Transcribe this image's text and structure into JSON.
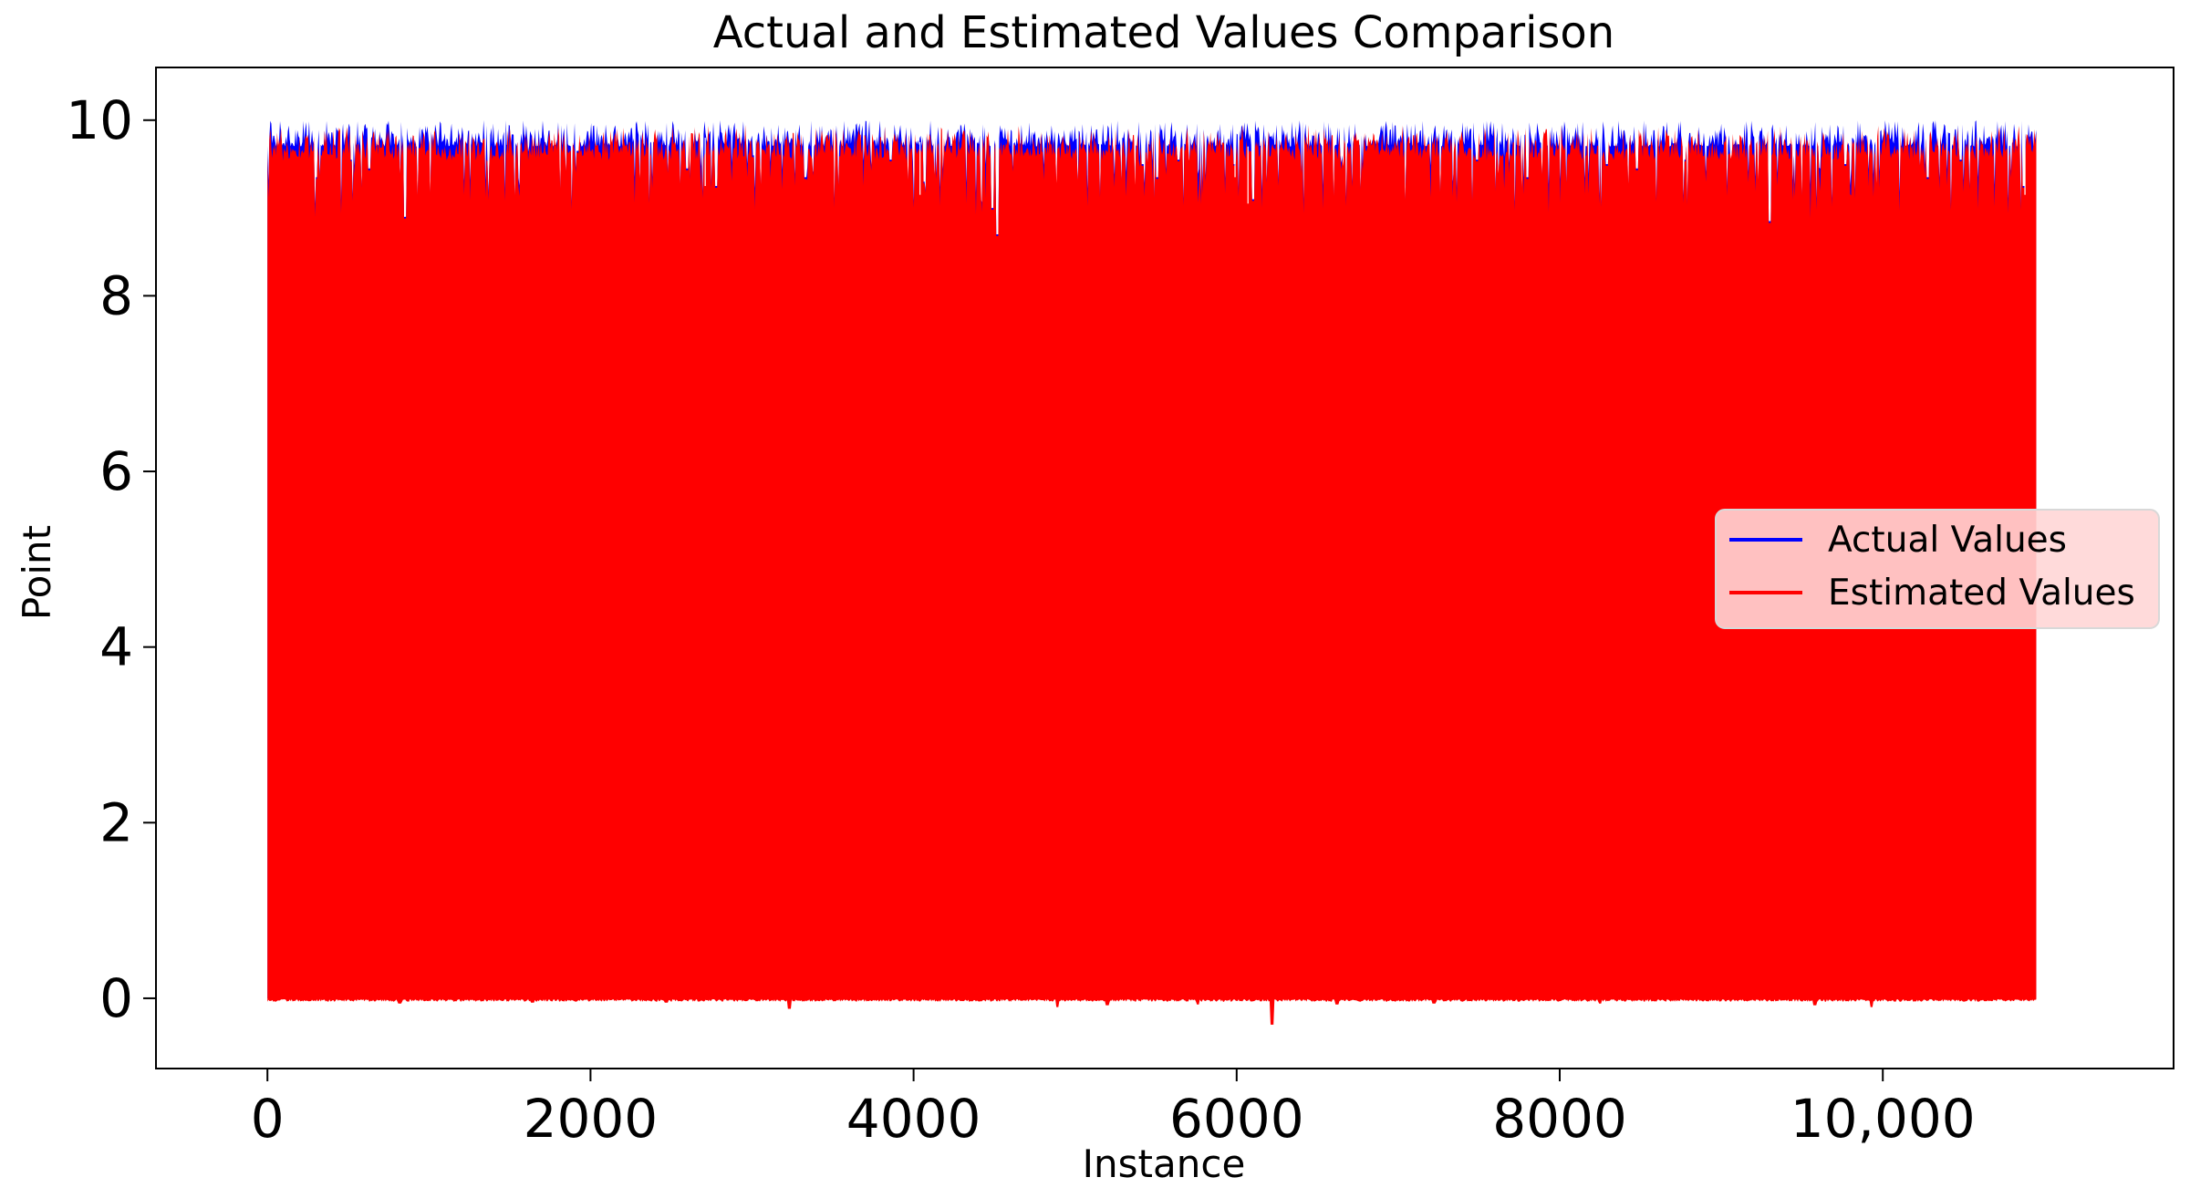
{
  "chart_data": {
    "type": "line",
    "title": "Actual and Estimated Values Comparison",
    "xlabel": "Instance",
    "ylabel": "Point",
    "xlim": [
      -690,
      11800
    ],
    "ylim": [
      -0.8,
      10.6
    ],
    "x_ticks": [
      {
        "value": 0,
        "label": "0"
      },
      {
        "value": 2000,
        "label": "2000"
      },
      {
        "value": 4000,
        "label": "4000"
      },
      {
        "value": 6000,
        "label": "6000"
      },
      {
        "value": 8000,
        "label": "8000"
      },
      {
        "value": 10000,
        "label": "10,000"
      }
    ],
    "y_ticks": [
      {
        "value": 0,
        "label": "0"
      },
      {
        "value": 2,
        "label": "2"
      },
      {
        "value": 4,
        "label": "4"
      },
      {
        "value": 6,
        "label": "6"
      },
      {
        "value": 8,
        "label": "8"
      },
      {
        "value": 10,
        "label": "10"
      }
    ],
    "grid": false,
    "legend_position": "center-right",
    "series": [
      {
        "name": "Actual Values",
        "color": "#0000ff",
        "x_range": [
          0,
          10950
        ],
        "value_range": [
          0,
          10
        ],
        "note_points": [
          [
            0,
            9.8
          ],
          [
            140,
            10.0
          ],
          [
            850,
            8.9
          ],
          [
            4520,
            8.7
          ],
          [
            9300,
            8.85
          ],
          [
            10950,
            10.0
          ]
        ]
      },
      {
        "name": "Estimated Values",
        "color": "#ff0000",
        "x_range": [
          0,
          10950
        ],
        "value_range": [
          -0.3,
          10.05
        ],
        "note_points": [
          [
            0,
            9.75
          ],
          [
            140,
            9.95
          ],
          [
            850,
            8.9
          ],
          [
            3230,
            -0.12
          ],
          [
            4890,
            -0.1
          ],
          [
            6220,
            -0.3
          ],
          [
            9300,
            8.8
          ],
          [
            9930,
            -0.1
          ],
          [
            10950,
            9.95
          ]
        ]
      }
    ]
  }
}
